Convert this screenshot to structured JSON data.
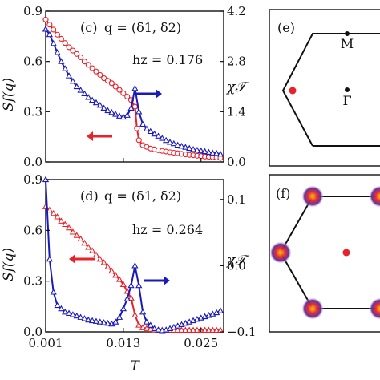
{
  "chart_data": [
    {
      "type": "line",
      "panel_label": "(c)",
      "q_text": "q = (δ1, δ2)",
      "field_text": "hz = 0.176",
      "ylabel_left": "Sf(q)",
      "ylabel_right": "χ𝒯",
      "xlim": [
        0.001,
        0.0285
      ],
      "ylim_left": [
        0,
        0.9
      ],
      "ylim_right": [
        0,
        4.2
      ],
      "yticks_left": [
        "0.0",
        "0.3",
        "0.6",
        "0.9"
      ],
      "yticks_right": [
        "0.0",
        "1.4",
        "2.8",
        "4.2"
      ],
      "series": [
        {
          "name": "",
          "axis": "left",
          "color": "#e8222a",
          "marker": "circle",
          "x": [
            0.001,
            0.0016,
            0.0022,
            0.0028,
            0.0034,
            0.004,
            0.0046,
            0.0052,
            0.0058,
            0.0064,
            0.007,
            0.0076,
            0.0082,
            0.0088,
            0.0094,
            0.01,
            0.0106,
            0.0112,
            0.0118,
            0.0124,
            0.013,
            0.0136,
            0.0142,
            0.0148,
            0.0151,
            0.0154,
            0.016,
            0.0166,
            0.0172,
            0.0178,
            0.0184,
            0.019,
            0.0196,
            0.0202,
            0.0208,
            0.0214,
            0.022,
            0.0226,
            0.0232,
            0.0238,
            0.0244,
            0.025,
            0.0256,
            0.0262,
            0.0268,
            0.0274,
            0.028
          ],
          "y": [
            0.85,
            0.82,
            0.79,
            0.76,
            0.735,
            0.71,
            0.685,
            0.665,
            0.645,
            0.625,
            0.6,
            0.58,
            0.56,
            0.54,
            0.52,
            0.5,
            0.485,
            0.47,
            0.45,
            0.43,
            0.41,
            0.39,
            0.37,
            0.33,
            0.2,
            0.13,
            0.1,
            0.09,
            0.08,
            0.075,
            0.07,
            0.066,
            0.062,
            0.058,
            0.055,
            0.052,
            0.048,
            0.045,
            0.042,
            0.04,
            0.037,
            0.035,
            0.032,
            0.03,
            0.028,
            0.026,
            0.024
          ]
        },
        {
          "name": "",
          "axis": "right",
          "color": "#1a1ab8",
          "marker": "triangle",
          "x": [
            0.001,
            0.0016,
            0.0022,
            0.0028,
            0.0034,
            0.004,
            0.0046,
            0.0052,
            0.0058,
            0.0064,
            0.007,
            0.0076,
            0.0082,
            0.0088,
            0.0094,
            0.01,
            0.0106,
            0.0112,
            0.0118,
            0.0124,
            0.013,
            0.0136,
            0.0142,
            0.0148,
            0.0154,
            0.016,
            0.0166,
            0.0172,
            0.0178,
            0.0184,
            0.019,
            0.0196,
            0.0202,
            0.0208,
            0.0214,
            0.022,
            0.0226,
            0.0232,
            0.0238,
            0.0244,
            0.025,
            0.0256,
            0.0262,
            0.0268,
            0.0274,
            0.028
          ],
          "y": [
            3.7,
            3.55,
            3.3,
            3.05,
            2.8,
            2.6,
            2.4,
            2.25,
            2.1,
            2.0,
            1.9,
            1.8,
            1.72,
            1.65,
            1.58,
            1.5,
            1.43,
            1.38,
            1.33,
            1.28,
            1.25,
            1.3,
            1.5,
            2.05,
            1.4,
            1.05,
            0.92,
            0.85,
            0.78,
            0.72,
            0.66,
            0.6,
            0.55,
            0.51,
            0.47,
            0.44,
            0.41,
            0.38,
            0.35,
            0.33,
            0.31,
            0.29,
            0.27,
            0.25,
            0.24,
            0.22
          ]
        }
      ],
      "arrows": [
        {
          "color": "#e8222a",
          "direction": "left"
        },
        {
          "color": "#1a1ab8",
          "direction": "right"
        }
      ]
    },
    {
      "type": "line",
      "panel_label": "(d)",
      "q_text": "q = (δ1, δ2)",
      "field_text": "hz = 0.264",
      "ylabel_left": "Sf(q)",
      "ylabel_right": "χ𝒯",
      "xlabel": "T",
      "xlim": [
        0.001,
        0.0285
      ],
      "xticks": [
        "0.001",
        "0.013",
        "0.025"
      ],
      "ylim_left": [
        0,
        0.9
      ],
      "ylim_right": [
        -0.1,
        0.13
      ],
      "yticks_left": [
        "0.0",
        "0.3",
        "0.6",
        "0.9"
      ],
      "yticks_right": [
        "−0.1",
        "0.0",
        "0.1"
      ],
      "series": [
        {
          "name": "",
          "axis": "left",
          "color": "#e8222a",
          "marker": "triangle",
          "x": [
            0.001,
            0.0016,
            0.0022,
            0.0028,
            0.0034,
            0.004,
            0.0046,
            0.0052,
            0.0058,
            0.0064,
            0.007,
            0.0076,
            0.0082,
            0.0088,
            0.0094,
            0.01,
            0.0106,
            0.0112,
            0.0118,
            0.0124,
            0.013,
            0.0136,
            0.0142,
            0.0148,
            0.0154,
            0.016,
            0.0166,
            0.0172,
            0.0178,
            0.0184,
            0.019,
            0.0196,
            0.0202,
            0.0208,
            0.0214,
            0.022,
            0.0226,
            0.0232,
            0.0238,
            0.0244,
            0.025,
            0.0256,
            0.0262,
            0.0268,
            0.0274,
            0.028
          ],
          "y": [
            0.74,
            0.72,
            0.7,
            0.68,
            0.655,
            0.635,
            0.615,
            0.59,
            0.57,
            0.55,
            0.525,
            0.5,
            0.48,
            0.455,
            0.43,
            0.41,
            0.385,
            0.36,
            0.335,
            0.31,
            0.28,
            0.24,
            0.2,
            0.1,
            0.04,
            0.025,
            0.02,
            0.015,
            0.012,
            0.01,
            0.01,
            0.01,
            0.01,
            0.01,
            0.01,
            0.01,
            0.01,
            0.01,
            0.01,
            0.01,
            0.01,
            0.01,
            0.01,
            0.01,
            0.01,
            0.01
          ]
        },
        {
          "name": "",
          "axis": "right",
          "color": "#1a1ab8",
          "marker": "triangle",
          "x": [
            0.001,
            0.0016,
            0.0022,
            0.0028,
            0.0034,
            0.004,
            0.0046,
            0.0052,
            0.0058,
            0.0064,
            0.007,
            0.0076,
            0.0082,
            0.0088,
            0.0094,
            0.01,
            0.0106,
            0.0112,
            0.0118,
            0.0124,
            0.013,
            0.0136,
            0.0142,
            0.0148,
            0.0154,
            0.016,
            0.0166,
            0.0172,
            0.0178,
            0.0184,
            0.019,
            0.0196,
            0.0202,
            0.0208,
            0.0214,
            0.022,
            0.0226,
            0.0232,
            0.0238,
            0.0244,
            0.025,
            0.0256,
            0.0262,
            0.0268,
            0.0274,
            0.028
          ],
          "y": [
            0.13,
            0.01,
            -0.04,
            -0.06,
            -0.065,
            -0.07,
            -0.072,
            -0.074,
            -0.076,
            -0.078,
            -0.08,
            -0.082,
            -0.083,
            -0.084,
            -0.085,
            -0.086,
            -0.087,
            -0.088,
            -0.085,
            -0.078,
            -0.065,
            -0.05,
            -0.03,
            0.0,
            -0.03,
            -0.07,
            -0.085,
            -0.09,
            -0.095,
            -0.097,
            -0.098,
            -0.097,
            -0.095,
            -0.093,
            -0.091,
            -0.089,
            -0.087,
            -0.085,
            -0.083,
            -0.081,
            -0.079,
            -0.077,
            -0.075,
            -0.073,
            -0.071,
            -0.068
          ]
        }
      ],
      "arrows": [
        {
          "color": "#e8222a",
          "direction": "left"
        },
        {
          "color": "#1a1ab8",
          "direction": "right"
        }
      ]
    },
    {
      "type": "diagram",
      "panel_label": "(e)",
      "points": [
        {
          "label": "M",
          "color": "#111111"
        },
        {
          "label": "Γ",
          "color": "#111111"
        },
        {
          "label": "",
          "color": "#e8222a"
        }
      ]
    },
    {
      "type": "heatmap",
      "panel_label": "(f)",
      "points": [
        {
          "label": "",
          "color": "#e8222a"
        }
      ]
    }
  ]
}
